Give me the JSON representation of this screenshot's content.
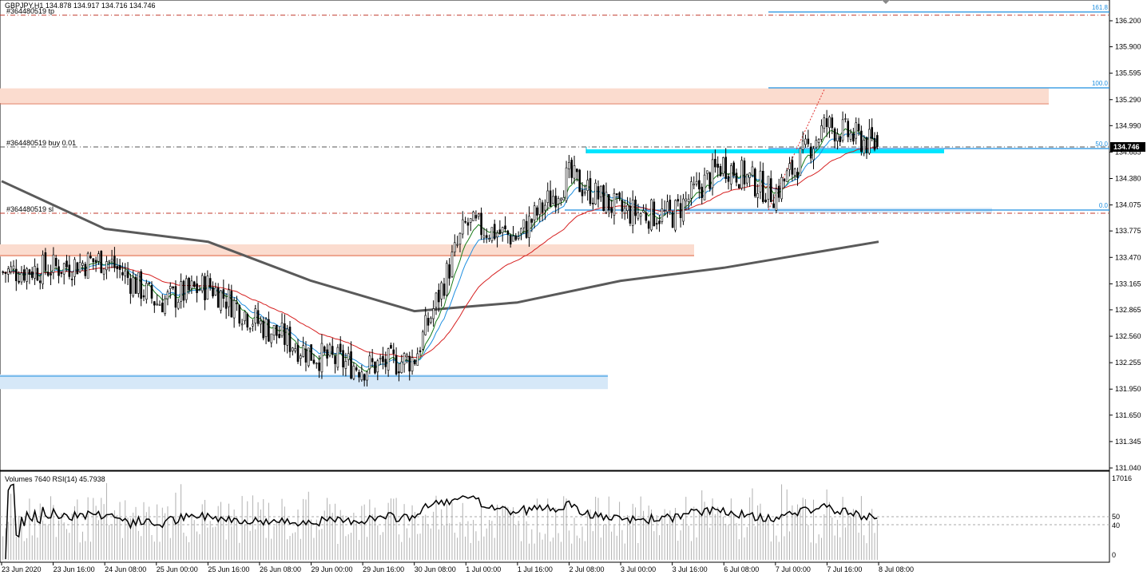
{
  "header": {
    "symbol_line": "GBPJPY,H1  134.878 134.917 134.716 134.746"
  },
  "orders": {
    "tp_label": "#364480519 tp",
    "buy_label": "#364480519 buy 0.01",
    "sl_label": "#364480519 sl"
  },
  "fib": {
    "levels": [
      {
        "label": "161.8",
        "price": 136.28
      },
      {
        "label": "100.0",
        "price": 135.41
      },
      {
        "label": "50.0",
        "price": 134.72
      },
      {
        "label": "0.0",
        "price": 134.04
      }
    ]
  },
  "price_axis": {
    "ticks": [
      "136.200",
      "135.900",
      "135.595",
      "135.290",
      "134.990",
      "134.685",
      "134.380",
      "134.075",
      "133.775",
      "133.470",
      "133.165",
      "132.865",
      "132.560",
      "132.255",
      "131.950",
      "131.650",
      "131.345",
      "131.040"
    ],
    "current_price": "134.746",
    "current_price_color": "#000000"
  },
  "indicator": {
    "title": "Volumes 7640  RSI(14) 45.7938",
    "ticks": [
      "17016",
      "50",
      "40",
      "0"
    ]
  },
  "time_axis": {
    "labels": [
      "23 Jun 2020",
      "23 Jun 16:00",
      "24 Jun 08:00",
      "25 Jun 00:00",
      "25 Jun 16:00",
      "26 Jun 08:00",
      "29 Jun 00:00",
      "29 Jun 16:00",
      "30 Jun 08:00",
      "1 Jul 00:00",
      "1 Jul 16:00",
      "2 Jul 08:00",
      "3 Jul 00:00",
      "3 Jul 16:00",
      "6 Jul 08:00",
      "7 Jul 00:00",
      "7 Jul 16:00",
      "8 Jul 08:00"
    ]
  },
  "chart_data": {
    "type": "candlestick",
    "symbol": "GBPJPY",
    "timeframe": "H1",
    "last_bar": {
      "open": 134.878,
      "high": 134.917,
      "low": 134.716,
      "close": 134.746
    },
    "key_closes": [
      {
        "x": "23 Jun 2020",
        "close": 133.3
      },
      {
        "x": "23 Jun 16:00",
        "close": 133.35
      },
      {
        "x": "24 Jun 08:00",
        "close": 133.45
      },
      {
        "x": "25 Jun 00:00",
        "close": 132.95
      },
      {
        "x": "25 Jun 16:00",
        "close": 133.15
      },
      {
        "x": "26 Jun 08:00",
        "close": 132.7
      },
      {
        "x": "29 Jun 00:00",
        "close": 132.35
      },
      {
        "x": "29 Jun 16:00",
        "close": 132.2
      },
      {
        "x": "30 Jun 08:00",
        "close": 132.3
      },
      {
        "x": "1 Jul 00:00",
        "close": 133.85
      },
      {
        "x": "1 Jul 16:00",
        "close": 133.7
      },
      {
        "x": "2 Jul 08:00",
        "close": 134.4
      },
      {
        "x": "3 Jul 00:00",
        "close": 134.0
      },
      {
        "x": "3 Jul 16:00",
        "close": 133.95
      },
      {
        "x": "6 Jul 08:00",
        "close": 134.55
      },
      {
        "x": "7 Jul 00:00",
        "close": 134.2
      },
      {
        "x": "7 Jul 16:00",
        "close": 135.0
      },
      {
        "x": "8 Jul 08:00",
        "close": 134.746
      }
    ],
    "ma_slow_points": [
      {
        "x": "23 Jun 2020",
        "y": 134.35
      },
      {
        "x": "24 Jun 08:00",
        "y": 133.8
      },
      {
        "x": "25 Jun 16:00",
        "y": 133.65
      },
      {
        "x": "29 Jun 00:00",
        "y": 133.2
      },
      {
        "x": "30 Jun 08:00",
        "y": 132.85
      },
      {
        "x": "1 Jul 16:00",
        "y": 132.95
      },
      {
        "x": "3 Jul 00:00",
        "y": 133.2
      },
      {
        "x": "6 Jul 08:00",
        "y": 133.35
      },
      {
        "x": "8 Jul 08:00",
        "y": 133.65
      }
    ],
    "zones": [
      {
        "name": "resistance-zone-upper",
        "from": 135.25,
        "to": 135.42,
        "color": "#fbdccf"
      },
      {
        "name": "resistance-zone-lower",
        "from": 133.48,
        "to": 133.62,
        "color": "#fbdccf"
      },
      {
        "name": "support-zone-lower",
        "from": 131.95,
        "to": 132.12,
        "color": "#d6e8f8"
      },
      {
        "name": "support-zone-fib",
        "from": 133.98,
        "to": 134.04,
        "color": "#d6e8f8"
      }
    ],
    "colors": {
      "bull": "#000000",
      "bear": "#000000",
      "ma_fast": "#1e8fe0",
      "ma_green": "#1a7d1a",
      "ma_red": "#d62020",
      "ma_slow": "#5a5a5a",
      "fib": "#1e8fe0",
      "order_line": "#c0392b",
      "highlight": "#00e5ff",
      "rsi": "#000000",
      "volume": "#b0b0b0"
    }
  }
}
